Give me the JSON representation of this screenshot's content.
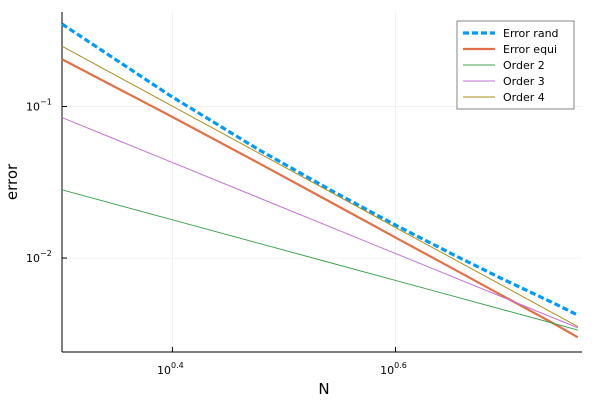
{
  "chart_data": {
    "type": "line",
    "title": "",
    "xlabel": "N",
    "ylabel": "error",
    "xscale": "log10",
    "yscale": "log10",
    "xlim": [
      2,
      5.85
    ],
    "ylim": [
      0.0024,
      0.42
    ],
    "grid": true,
    "legend_position": "top-right",
    "x_ticks": [
      {
        "value": 2.5119,
        "base": "10",
        "exp": "0.4"
      },
      {
        "value": 3.9811,
        "base": "10",
        "exp": "0.6"
      }
    ],
    "y_ticks": [
      {
        "value": 0.01,
        "base": "10",
        "exp": "−2"
      },
      {
        "value": 0.1,
        "base": "10",
        "exp": "−1"
      }
    ],
    "series": [
      {
        "name": "Error rand",
        "color": "#009af9",
        "dash": true,
        "width": 3.2,
        "x": [
          2.0,
          2.5,
          3.0,
          3.5,
          4.0,
          4.5,
          5.0,
          5.5,
          5.8
        ],
        "y": [
          0.35,
          0.118,
          0.052,
          0.0275,
          0.0162,
          0.0104,
          0.0071,
          0.0051,
          0.0042
        ]
      },
      {
        "name": "Error equi",
        "color": "#e26f46",
        "dash": false,
        "width": 2.2,
        "x": [
          2.0,
          2.5,
          3.0,
          3.5,
          4.0,
          4.5,
          5.0,
          5.5,
          5.8
        ],
        "y": [
          0.205,
          0.0869,
          0.0424,
          0.0229,
          0.0134,
          0.00838,
          0.00549,
          0.00375,
          0.003
        ]
      },
      {
        "name": "Order 2",
        "color": "#3da44d",
        "dash": false,
        "width": 1,
        "x": [
          2.0,
          2.5,
          3.0,
          3.5,
          4.0,
          4.5,
          5.0,
          5.5,
          5.8
        ],
        "y": [
          0.0282,
          0.01805,
          0.01253,
          0.00921,
          0.00705,
          0.00557,
          0.00451,
          0.00373,
          0.00335
        ]
      },
      {
        "name": "Order 3",
        "color": "#c271d2",
        "dash": false,
        "width": 1,
        "x": [
          2.0,
          2.5,
          3.0,
          3.5,
          4.0,
          4.5,
          5.0,
          5.5,
          5.8
        ],
        "y": [
          0.0845,
          0.0433,
          0.02504,
          0.01577,
          0.01056,
          0.00742,
          0.00541,
          0.00406,
          0.00347
        ]
      },
      {
        "name": "Order 4",
        "color": "#ac8d18",
        "dash": false,
        "width": 1,
        "x": [
          2.0,
          2.5,
          3.0,
          3.5,
          4.0,
          4.5,
          5.0,
          5.5,
          5.8
        ],
        "y": [
          0.25,
          0.1024,
          0.0494,
          0.0267,
          0.0156,
          0.00976,
          0.0064,
          0.00437,
          0.00353
        ]
      }
    ]
  }
}
